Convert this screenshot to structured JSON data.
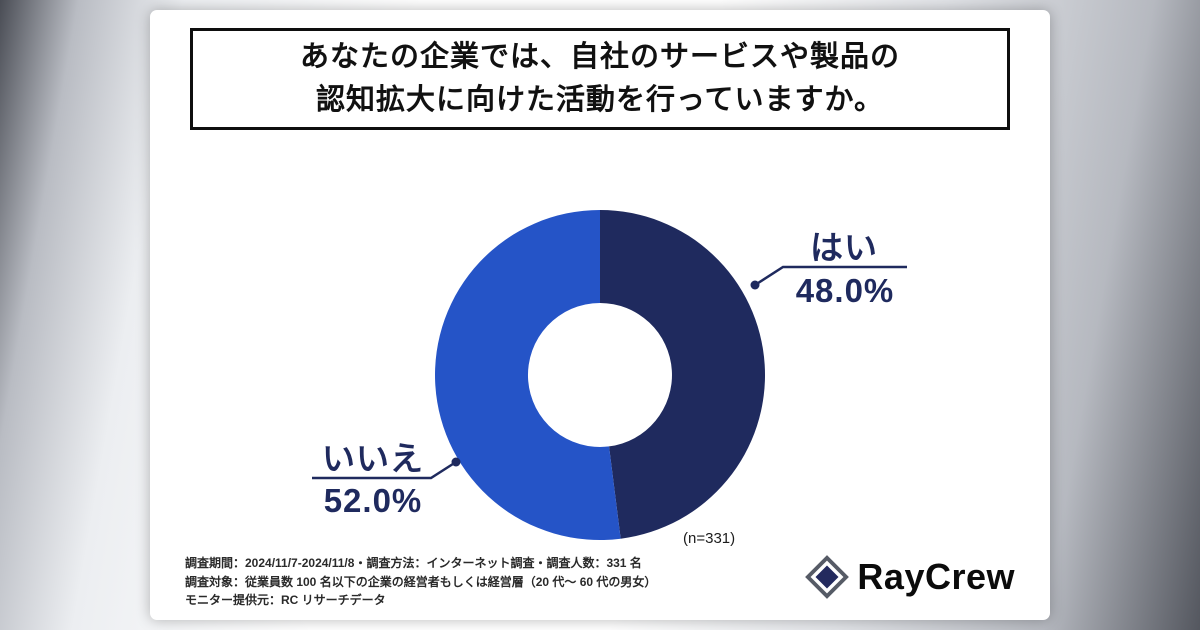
{
  "title": {
    "line1": "あなたの企業では、自社のサービスや製品の",
    "line2": "認知拡大に向けた活動を行っていますか。"
  },
  "chart_data": {
    "type": "pie",
    "style": "donut",
    "title": "あなたの企業では、自社のサービスや製品の認知拡大に向けた活動を行っていますか。",
    "categories": [
      "はい",
      "いいえ"
    ],
    "values": [
      48.0,
      52.0
    ],
    "value_labels": [
      "48.0%",
      "52.0%"
    ],
    "colors": [
      "#1f2a5e",
      "#2554c7"
    ],
    "start_angle": "top",
    "direction": "clockwise",
    "sample_note": "(n=331)",
    "legend": "callout-labels",
    "accent_text_color": "#1f2a5e"
  },
  "callouts": {
    "yes": {
      "label": "はい",
      "value": "48.0%"
    },
    "no": {
      "label": "いいえ",
      "value": "52.0%"
    }
  },
  "footer": {
    "line1": "調査期間：2024/11/7-2024/11/8・調査方法：インターネット調査・調査人数：331 名",
    "line2": "調査対象：従業員数 100 名以下の企業の経営者もしくは経営層（20 代～ 60 代の男女）",
    "line3": "モニター提供元：RC リサーチデータ"
  },
  "logo": {
    "text": "RayCrew"
  }
}
